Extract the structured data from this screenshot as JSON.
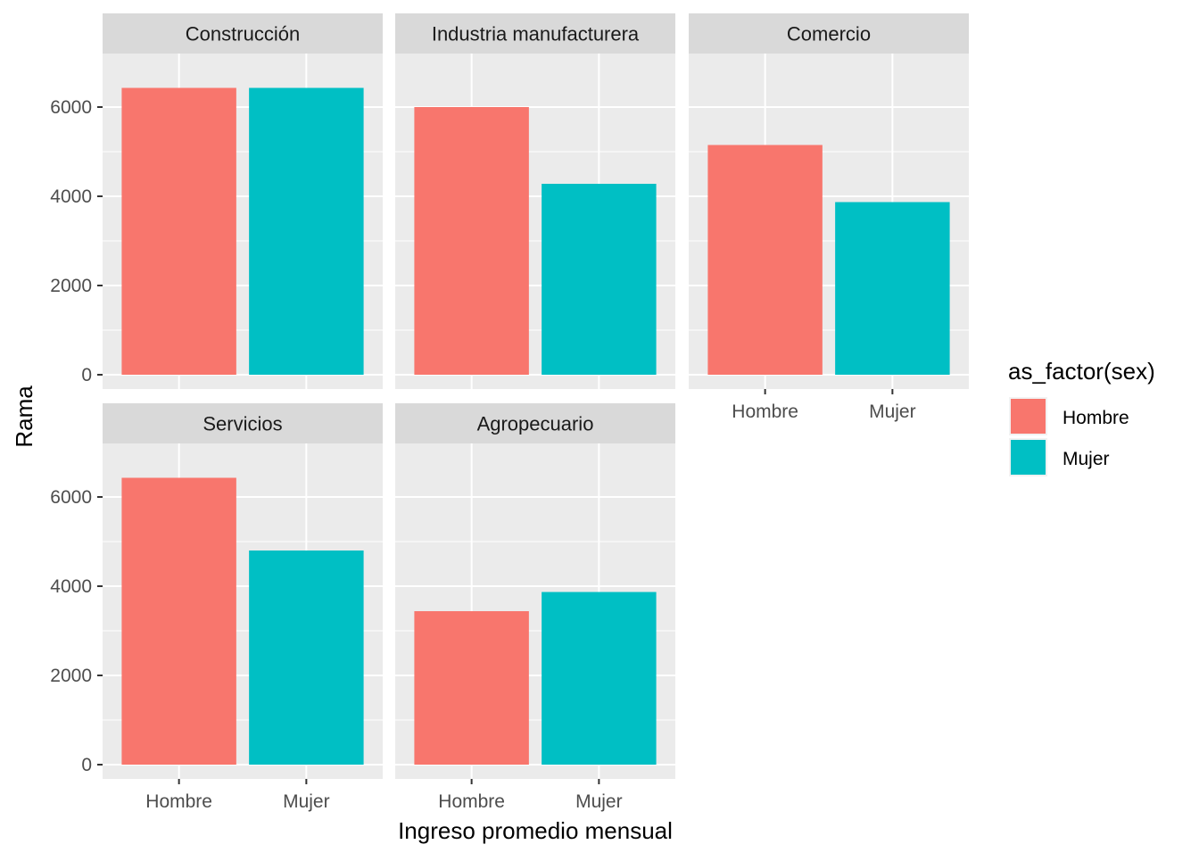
{
  "chart_data": {
    "type": "bar",
    "facets": [
      {
        "title": "Construcción",
        "categories": [
          "Hombre",
          "Mujer"
        ],
        "values": [
          6430,
          6430
        ]
      },
      {
        "title": "Industria manufacturera",
        "categories": [
          "Hombre",
          "Mujer"
        ],
        "values": [
          6000,
          4280
        ]
      },
      {
        "title": "Comercio",
        "categories": [
          "Hombre",
          "Mujer"
        ],
        "values": [
          5150,
          3870
        ]
      },
      {
        "title": "Servicios",
        "categories": [
          "Hombre",
          "Mujer"
        ],
        "values": [
          6430,
          4800
        ]
      },
      {
        "title": "Agropecuario",
        "categories": [
          "Hombre",
          "Mujer"
        ],
        "values": [
          3440,
          3870
        ]
      }
    ],
    "xlabel": "Ingreso promedio mensual",
    "ylabel": "Rama",
    "ylim": [
      -320,
      7200
    ],
    "yticks": [
      0,
      2000,
      4000,
      6000
    ],
    "ytick_labels": [
      "0",
      "2000",
      "4000",
      "6000"
    ],
    "legend": {
      "title": "as_factor(sex)",
      "placement": "right",
      "entries": [
        "Hombre",
        "Mujer"
      ]
    },
    "colors": {
      "Hombre": "#F8766D",
      "Mujer": "#00BFC4"
    },
    "grid": true
  }
}
